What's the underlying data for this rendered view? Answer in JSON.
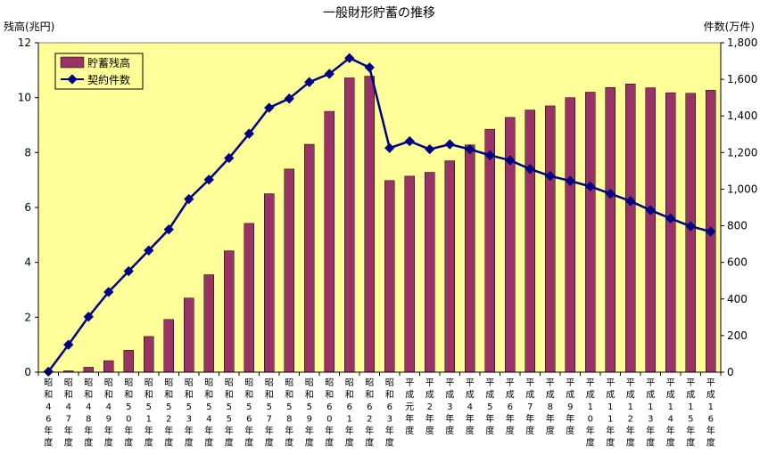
{
  "chart_data": {
    "type": "bar",
    "title": "一般財形貯蓄の推移",
    "ylabel_left": "残高(兆円)",
    "ylabel_right": "件数(万件)",
    "categories": [
      [
        "昭",
        "和",
        "4",
        "6",
        "年",
        "度"
      ],
      [
        "昭",
        "和",
        "4",
        "7",
        "年",
        "度"
      ],
      [
        "昭",
        "和",
        "4",
        "8",
        "年",
        "度"
      ],
      [
        "昭",
        "和",
        "4",
        "9",
        "年",
        "度"
      ],
      [
        "昭",
        "和",
        "5",
        "0",
        "年",
        "度"
      ],
      [
        "昭",
        "和",
        "5",
        "1",
        "年",
        "度"
      ],
      [
        "昭",
        "和",
        "5",
        "2",
        "年",
        "度"
      ],
      [
        "昭",
        "和",
        "5",
        "3",
        "年",
        "度"
      ],
      [
        "昭",
        "和",
        "5",
        "4",
        "年",
        "度"
      ],
      [
        "昭",
        "和",
        "5",
        "5",
        "年",
        "度"
      ],
      [
        "昭",
        "和",
        "5",
        "6",
        "年",
        "度"
      ],
      [
        "昭",
        "和",
        "5",
        "7",
        "年",
        "度"
      ],
      [
        "昭",
        "和",
        "5",
        "8",
        "年",
        "度"
      ],
      [
        "昭",
        "和",
        "5",
        "9",
        "年",
        "度"
      ],
      [
        "昭",
        "和",
        "6",
        "0",
        "年",
        "度"
      ],
      [
        "昭",
        "和",
        "6",
        "1",
        "年",
        "度"
      ],
      [
        "昭",
        "和",
        "6",
        "2",
        "年",
        "度"
      ],
      [
        "昭",
        "和",
        "6",
        "3",
        "年",
        "度"
      ],
      [
        "平",
        "成",
        "元",
        "年",
        "度"
      ],
      [
        "平",
        "成",
        "2",
        "年",
        "度"
      ],
      [
        "平",
        "成",
        "3",
        "年",
        "度"
      ],
      [
        "平",
        "成",
        "4",
        "年",
        "度"
      ],
      [
        "平",
        "成",
        "5",
        "年",
        "度"
      ],
      [
        "平",
        "成",
        "6",
        "年",
        "度"
      ],
      [
        "平",
        "成",
        "7",
        "年",
        "度"
      ],
      [
        "平",
        "成",
        "8",
        "年",
        "度"
      ],
      [
        "平",
        "成",
        "9",
        "年",
        "度"
      ],
      [
        "平",
        "成",
        "1",
        "0",
        "年",
        "度"
      ],
      [
        "平",
        "成",
        "1",
        "1",
        "年",
        "度"
      ],
      [
        "平",
        "成",
        "1",
        "2",
        "年",
        "度"
      ],
      [
        "平",
        "成",
        "1",
        "3",
        "年",
        "度"
      ],
      [
        "平",
        "成",
        "1",
        "4",
        "年",
        "度"
      ],
      [
        "平",
        "成",
        "1",
        "5",
        "年",
        "度"
      ],
      [
        "平",
        "成",
        "1",
        "6",
        "年",
        "度"
      ]
    ],
    "series": [
      {
        "name": "貯蓄残高",
        "type": "bar",
        "axis": "left",
        "color": "#993366",
        "values": [
          0.01,
          0.05,
          0.18,
          0.42,
          0.8,
          1.3,
          1.92,
          2.7,
          3.55,
          4.42,
          5.42,
          6.5,
          7.4,
          8.3,
          9.5,
          10.72,
          10.78,
          6.98,
          7.14,
          7.28,
          7.7,
          8.28,
          8.85,
          9.28,
          9.55,
          9.7,
          10.0,
          10.2,
          10.37,
          10.5,
          10.36,
          10.18,
          10.16,
          10.27
        ]
      },
      {
        "name": "契約件数",
        "type": "line",
        "axis": "right",
        "color": "#000080",
        "values": [
          3,
          150,
          303,
          438,
          552,
          665,
          780,
          946,
          1052,
          1170,
          1303,
          1445,
          1495,
          1585,
          1630,
          1716,
          1665,
          1225,
          1262,
          1218,
          1245,
          1218,
          1185,
          1158,
          1110,
          1072,
          1045,
          1015,
          975,
          935,
          885,
          840,
          797,
          768
        ]
      }
    ],
    "ylim_left": [
      0,
      12
    ],
    "yticks_left": [
      "0",
      "2",
      "4",
      "6",
      "8",
      "10",
      "12"
    ],
    "ylim_right": [
      0,
      1800
    ],
    "yticks_right": [
      "0",
      "200",
      "400",
      "600",
      "800",
      "1,000",
      "1,200",
      "1,400",
      "1,600",
      "1,800"
    ],
    "grid": false,
    "legend_position": "top-left",
    "plot_background": "#ffff99"
  }
}
